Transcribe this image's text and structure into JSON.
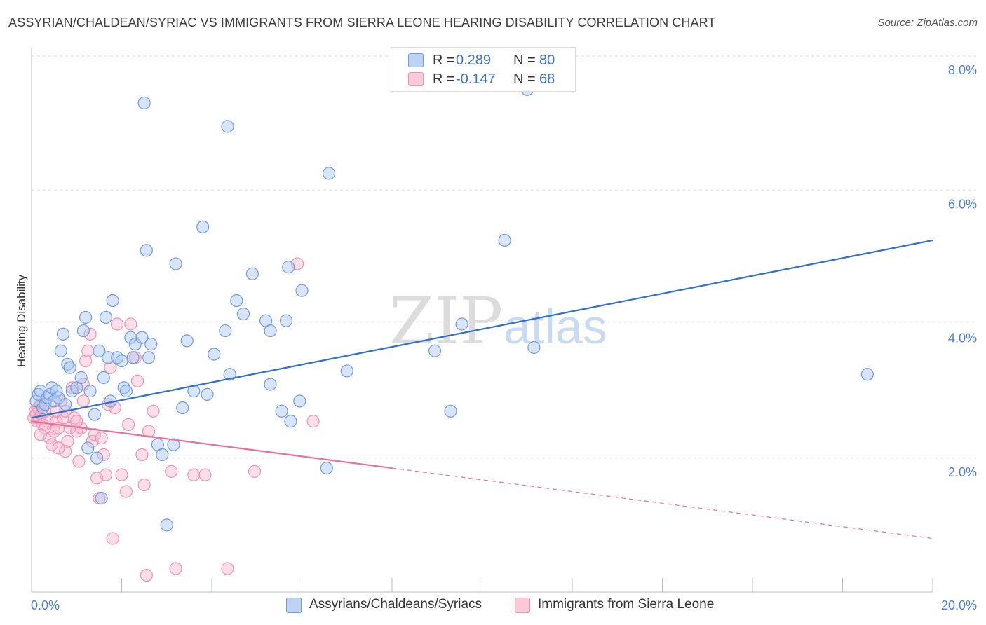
{
  "title": "ASSYRIAN/CHALDEAN/SYRIAC VS IMMIGRANTS FROM SIERRA LEONE HEARING DISABILITY CORRELATION CHART",
  "source": "Source: ZipAtlas.com",
  "watermark": {
    "zip": "ZIP",
    "atlas": "atlas"
  },
  "legend": {
    "rows": [
      {
        "r_label": "R =",
        "r_value": "0.289",
        "n_label": "N =",
        "n_value": "80"
      },
      {
        "r_label": "R =",
        "r_value": "-0.147",
        "n_label": "N =",
        "n_value": "68"
      }
    ]
  },
  "colors": {
    "blue_fill": "#a9c6f2",
    "blue_stroke": "#6f9be0",
    "blue_line": "#2f6fd0",
    "pink_fill": "#f7b9cc",
    "pink_stroke": "#ee92b0",
    "pink_line": "#e8709a",
    "grid": "#dddddd",
    "tick_text": "#4a7fd4"
  },
  "chart_data": {
    "type": "scatter",
    "title": "ASSYRIAN/CHALDEAN/SYRIAC VS IMMIGRANTS FROM SIERRA LEONE HEARING DISABILITY CORRELATION CHART",
    "xlabel": "",
    "ylabel": "Hearing Disability",
    "xlim": [
      0,
      20
    ],
    "ylim": [
      0,
      8
    ],
    "x_tick_labels": [
      {
        "value": 0,
        "label": "0.0%"
      },
      {
        "value": 20,
        "label": "20.0%"
      }
    ],
    "y_tick_labels": [
      {
        "value": 2,
        "label": "2.0%"
      },
      {
        "value": 4,
        "label": "4.0%"
      },
      {
        "value": 6,
        "label": "6.0%"
      },
      {
        "value": 8,
        "label": "8.0%"
      }
    ],
    "series": [
      {
        "name": "Assyrians/Chaldeans/Syriacs",
        "color": "blue",
        "r": 0.289,
        "n": 80,
        "trend": {
          "x": [
            0,
            20
          ],
          "y": [
            2.6,
            5.25
          ]
        },
        "points": [
          [
            0.1,
            2.85
          ],
          [
            0.15,
            2.95
          ],
          [
            0.2,
            3.0
          ],
          [
            0.25,
            2.75
          ],
          [
            0.3,
            2.8
          ],
          [
            0.35,
            2.9
          ],
          [
            0.4,
            2.95
          ],
          [
            0.45,
            3.05
          ],
          [
            0.5,
            2.85
          ],
          [
            0.55,
            3.0
          ],
          [
            0.6,
            2.9
          ],
          [
            0.65,
            3.6
          ],
          [
            0.7,
            3.85
          ],
          [
            0.75,
            2.8
          ],
          [
            0.8,
            3.4
          ],
          [
            0.85,
            3.35
          ],
          [
            0.9,
            3.0
          ],
          [
            1.0,
            3.05
          ],
          [
            1.1,
            3.2
          ],
          [
            1.15,
            3.9
          ],
          [
            1.2,
            4.1
          ],
          [
            1.25,
            2.15
          ],
          [
            1.3,
            3.0
          ],
          [
            1.4,
            2.65
          ],
          [
            1.45,
            2.0
          ],
          [
            1.5,
            3.6
          ],
          [
            1.55,
            1.4
          ],
          [
            1.6,
            3.2
          ],
          [
            1.65,
            4.1
          ],
          [
            1.75,
            2.85
          ],
          [
            1.8,
            4.35
          ],
          [
            1.9,
            3.5
          ],
          [
            2.0,
            3.45
          ],
          [
            2.05,
            3.05
          ],
          [
            2.1,
            3.0
          ],
          [
            2.2,
            3.8
          ],
          [
            2.25,
            3.5
          ],
          [
            2.3,
            3.7
          ],
          [
            2.45,
            3.8
          ],
          [
            2.5,
            7.3
          ],
          [
            2.55,
            5.1
          ],
          [
            2.6,
            3.5
          ],
          [
            2.65,
            3.7
          ],
          [
            2.8,
            2.2
          ],
          [
            2.9,
            2.05
          ],
          [
            3.0,
            1.0
          ],
          [
            3.15,
            2.2
          ],
          [
            3.2,
            4.9
          ],
          [
            3.35,
            2.75
          ],
          [
            3.45,
            3.75
          ],
          [
            3.6,
            3.0
          ],
          [
            3.8,
            5.45
          ],
          [
            3.9,
            2.95
          ],
          [
            4.05,
            3.55
          ],
          [
            4.3,
            3.9
          ],
          [
            4.35,
            6.95
          ],
          [
            4.4,
            3.25
          ],
          [
            4.55,
            4.35
          ],
          [
            4.7,
            4.15
          ],
          [
            4.9,
            4.75
          ],
          [
            5.2,
            4.05
          ],
          [
            5.3,
            3.1
          ],
          [
            5.3,
            3.9
          ],
          [
            5.55,
            2.7
          ],
          [
            5.65,
            4.05
          ],
          [
            5.7,
            4.85
          ],
          [
            5.75,
            2.55
          ],
          [
            5.95,
            2.85
          ],
          [
            6.0,
            4.5
          ],
          [
            6.6,
            6.25
          ],
          [
            6.55,
            1.85
          ],
          [
            7.0,
            3.3
          ],
          [
            8.95,
            3.6
          ],
          [
            9.3,
            2.7
          ],
          [
            9.55,
            4.0
          ],
          [
            10.5,
            5.25
          ],
          [
            11.0,
            7.5
          ],
          [
            11.15,
            3.65
          ],
          [
            18.55,
            3.25
          ],
          [
            1.7,
            3.5
          ]
        ]
      },
      {
        "name": "Immigrants from Sierra Leone",
        "color": "pink",
        "r": -0.147,
        "n": 68,
        "trend": {
          "x": [
            0,
            8.0
          ],
          "y": [
            2.55,
            1.85
          ]
        },
        "trend_dashed": {
          "x": [
            8.0,
            20
          ],
          "y": [
            1.85,
            0.8
          ]
        },
        "points": [
          [
            0.05,
            2.6
          ],
          [
            0.08,
            2.7
          ],
          [
            0.1,
            2.65
          ],
          [
            0.12,
            2.55
          ],
          [
            0.15,
            2.75
          ],
          [
            0.18,
            2.6
          ],
          [
            0.2,
            2.8
          ],
          [
            0.22,
            2.65
          ],
          [
            0.25,
            2.5
          ],
          [
            0.3,
            2.7
          ],
          [
            0.35,
            2.55
          ],
          [
            0.4,
            2.3
          ],
          [
            0.45,
            2.2
          ],
          [
            0.5,
            2.4
          ],
          [
            0.55,
            2.55
          ],
          [
            0.6,
            2.45
          ],
          [
            0.65,
            2.85
          ],
          [
            0.7,
            2.6
          ],
          [
            0.75,
            2.7
          ],
          [
            0.8,
            2.25
          ],
          [
            0.85,
            2.45
          ],
          [
            0.9,
            3.05
          ],
          [
            0.95,
            2.6
          ],
          [
            1.0,
            2.4
          ],
          [
            1.05,
            1.95
          ],
          [
            1.1,
            2.45
          ],
          [
            1.15,
            2.85
          ],
          [
            1.2,
            3.45
          ],
          [
            1.25,
            3.6
          ],
          [
            1.3,
            3.85
          ],
          [
            1.35,
            2.25
          ],
          [
            1.4,
            2.35
          ],
          [
            1.45,
            1.7
          ],
          [
            1.5,
            1.4
          ],
          [
            1.55,
            2.3
          ],
          [
            1.6,
            2.05
          ],
          [
            1.65,
            1.75
          ],
          [
            1.7,
            2.8
          ],
          [
            1.75,
            3.35
          ],
          [
            1.8,
            0.8
          ],
          [
            1.9,
            4.0
          ],
          [
            2.0,
            1.75
          ],
          [
            2.1,
            1.5
          ],
          [
            2.15,
            2.5
          ],
          [
            2.2,
            4.0
          ],
          [
            2.3,
            3.5
          ],
          [
            2.35,
            3.15
          ],
          [
            2.45,
            2.05
          ],
          [
            2.5,
            1.6
          ],
          [
            2.55,
            0.25
          ],
          [
            2.6,
            2.4
          ],
          [
            2.7,
            2.7
          ],
          [
            3.1,
            1.8
          ],
          [
            3.2,
            0.35
          ],
          [
            3.6,
            1.75
          ],
          [
            3.85,
            1.75
          ],
          [
            4.35,
            0.35
          ],
          [
            4.95,
            1.8
          ],
          [
            5.9,
            4.9
          ],
          [
            6.25,
            2.55
          ],
          [
            0.55,
            2.7
          ],
          [
            0.3,
            2.45
          ],
          [
            1.15,
            3.1
          ],
          [
            1.0,
            2.55
          ],
          [
            0.75,
            2.1
          ],
          [
            1.85,
            2.75
          ],
          [
            0.2,
            2.35
          ],
          [
            0.6,
            2.15
          ]
        ]
      }
    ]
  }
}
